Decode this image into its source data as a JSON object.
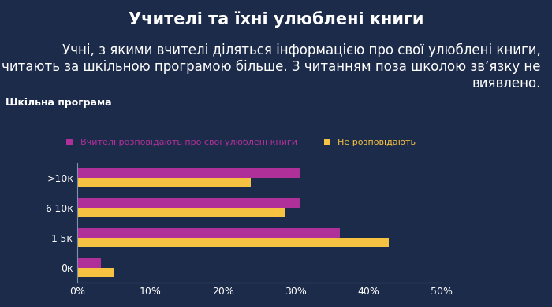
{
  "header": {
    "title": "Учителі та їхні улюблені книги",
    "text": "Учні, з якими вчителі діляться інформацією про свої улюблені книги, читають за шкільною програмою більше. З читанням поза школою зв’язку не виявлено."
  },
  "chart_data": {
    "type": "bar",
    "orientation": "horizontal",
    "title": "Шкільна програма",
    "categories": [
      ">10к",
      "6-10к",
      "1-5к",
      "0к"
    ],
    "series": [
      {
        "name": "Вчителі розповідають про свої улюблені книги",
        "color": "#b0309a",
        "values": [
          30.5,
          30.5,
          36.0,
          3.3
        ]
      },
      {
        "name": "Не розповідають",
        "color": "#f5c242",
        "values": [
          23.8,
          28.6,
          42.8,
          5.0
        ]
      }
    ],
    "xlim": [
      0,
      50
    ],
    "xticks": [
      {
        "value": 0,
        "label": "0%"
      },
      {
        "value": 10,
        "label": "10%"
      },
      {
        "value": 20,
        "label": "20%"
      },
      {
        "value": 30,
        "label": "30%"
      },
      {
        "value": 40,
        "label": "40%"
      },
      {
        "value": 50,
        "label": "50%"
      }
    ],
    "grid": false,
    "legend": "upper center"
  }
}
